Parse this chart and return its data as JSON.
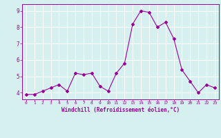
{
  "x": [
    0,
    1,
    2,
    3,
    4,
    5,
    6,
    7,
    8,
    9,
    10,
    11,
    12,
    13,
    14,
    15,
    16,
    17,
    18,
    19,
    20,
    21,
    22,
    23
  ],
  "y": [
    3.9,
    3.9,
    4.1,
    4.3,
    4.5,
    4.1,
    5.2,
    5.1,
    5.2,
    4.4,
    4.1,
    5.2,
    5.8,
    8.2,
    9.0,
    8.9,
    8.0,
    8.3,
    7.3,
    5.4,
    4.7,
    4.0,
    4.5,
    4.3
  ],
  "line_color": "#990099",
  "marker": "D",
  "marker_size": 2.0,
  "bg_color": "#d6f0f0",
  "grid_color": "#ffffff",
  "xlabel": "Windchill (Refroidissement éolien,°C)",
  "xlabel_color": "#990099",
  "tick_color": "#990099",
  "yticks": [
    4,
    5,
    6,
    7,
    8,
    9
  ],
  "xlim": [
    -0.5,
    23.5
  ],
  "ylim": [
    3.6,
    9.4
  ]
}
